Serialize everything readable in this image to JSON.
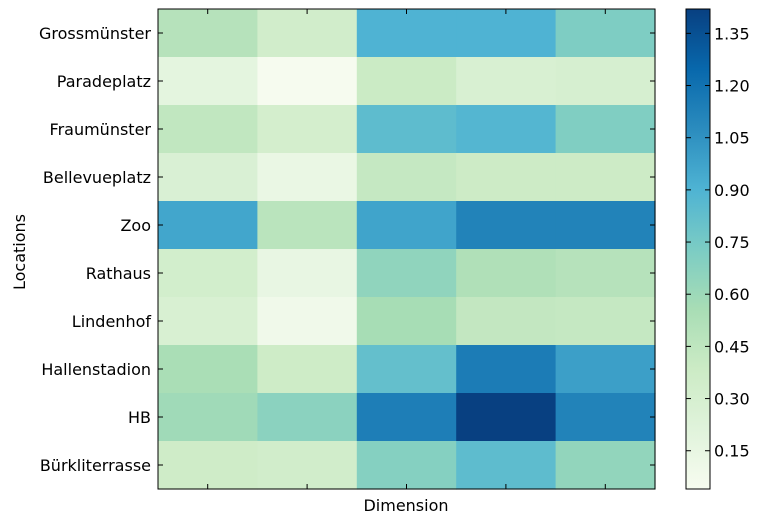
{
  "chart_data": {
    "type": "heatmap",
    "xlabel": "Dimension",
    "ylabel": "Locations",
    "rows": [
      "Grossmünster",
      "Paradeplatz",
      "Fraumünster",
      "Bellevueplatz",
      "Zoo",
      "Rathaus",
      "Lindenhof",
      "Hallenstadion",
      "HB",
      "Bürkliterrasse"
    ],
    "columns": 5,
    "values": [
      [
        0.49,
        0.34,
        0.9,
        0.9,
        0.72
      ],
      [
        0.18,
        0.05,
        0.39,
        0.28,
        0.3
      ],
      [
        0.44,
        0.32,
        0.84,
        0.88,
        0.71
      ],
      [
        0.27,
        0.14,
        0.42,
        0.38,
        0.38
      ],
      [
        0.96,
        0.47,
        0.97,
        1.12,
        1.12
      ],
      [
        0.33,
        0.15,
        0.65,
        0.52,
        0.49
      ],
      [
        0.28,
        0.09,
        0.56,
        0.43,
        0.42
      ],
      [
        0.55,
        0.37,
        0.82,
        1.15,
        0.99
      ],
      [
        0.59,
        0.67,
        1.14,
        1.42,
        1.12
      ],
      [
        0.36,
        0.34,
        0.69,
        0.84,
        0.64
      ]
    ],
    "colorbar": {
      "min": 0.04,
      "max": 1.42,
      "ticks": [
        0.15,
        0.3,
        0.45,
        0.6,
        0.75,
        0.9,
        1.05,
        1.2,
        1.35
      ],
      "tick_labels": [
        "0.15",
        "0.30",
        "0.45",
        "0.60",
        "0.75",
        "0.90",
        "1.05",
        "1.20",
        "1.35"
      ]
    },
    "colormap": "GnBu",
    "grid": false
  }
}
